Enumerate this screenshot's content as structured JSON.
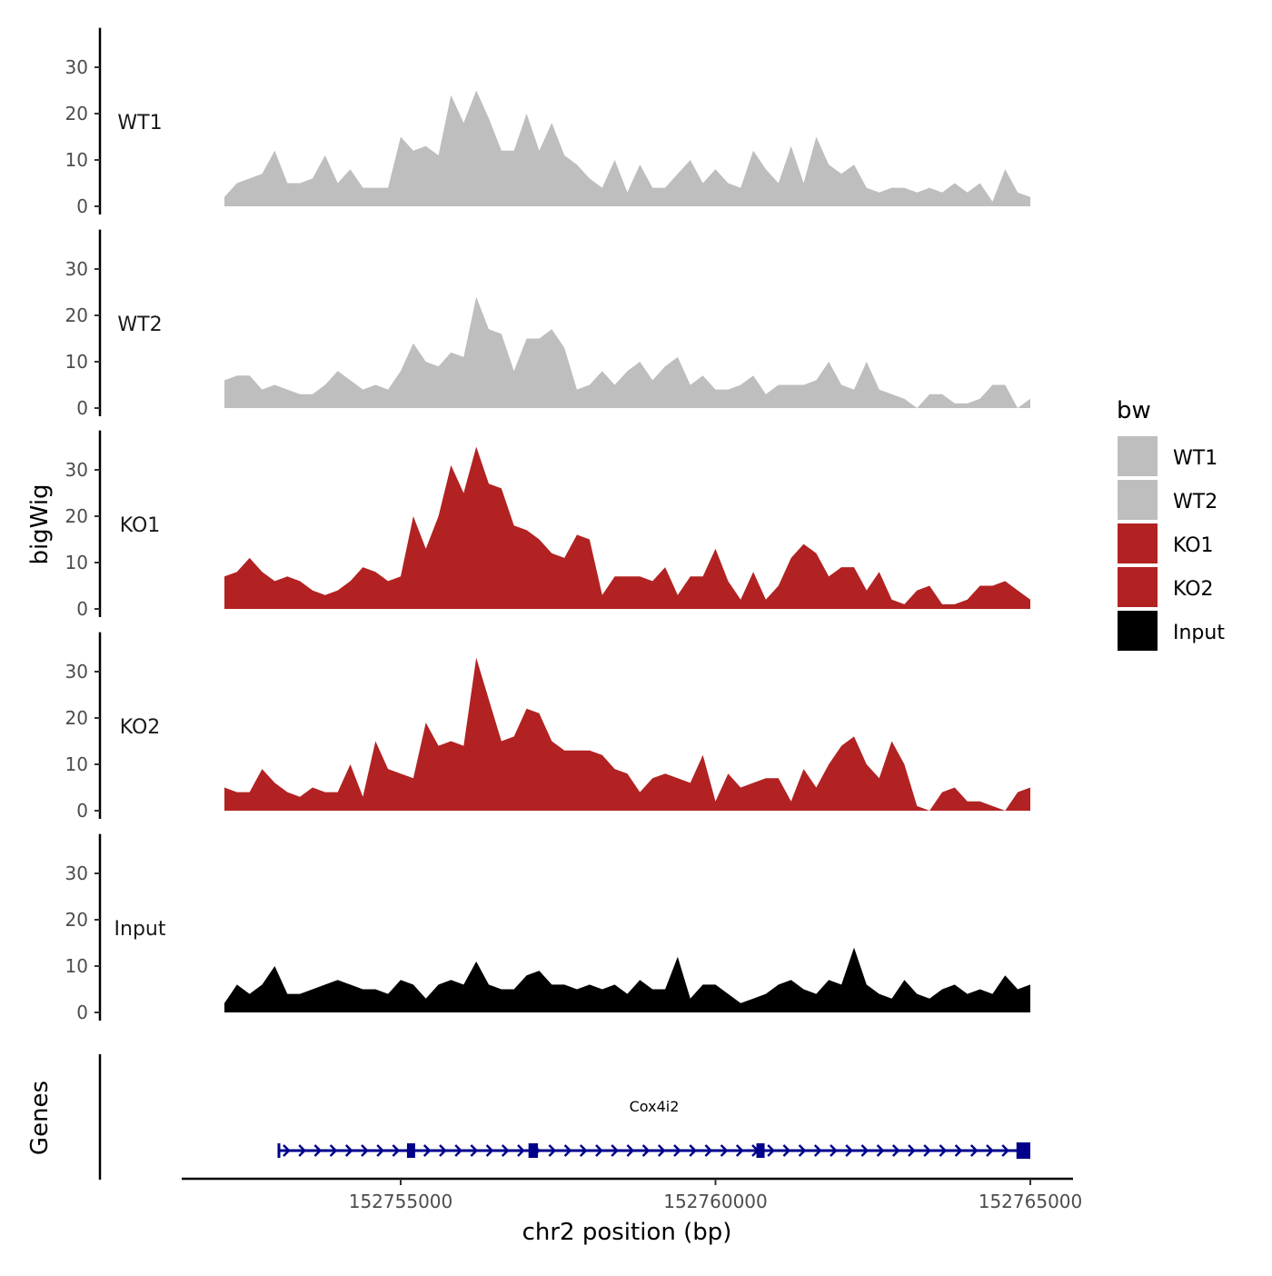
{
  "chart_data": {
    "type": "area",
    "ylabel": "bigWig",
    "genes_label": "Genes",
    "xlabel": "chr2 position (bp)",
    "xlim": [
      152752186,
      152765000
    ],
    "ylim": [
      0,
      38.5
    ],
    "yticks": [
      "0",
      "10",
      "20",
      "30"
    ],
    "ytick_values": [
      0,
      10,
      20,
      30
    ],
    "xticks": [
      "152755000",
      "152760000",
      "152765000"
    ],
    "xtick_values": [
      152755000,
      152760000,
      152765000
    ],
    "x_start": 152752200,
    "x_step": 200,
    "legend": {
      "title": "bw",
      "position": "right",
      "entries": [
        {
          "label": "WT1",
          "color": "#bebebe"
        },
        {
          "label": "WT2",
          "color": "#bebebe"
        },
        {
          "label": "KO1",
          "color": "#b22222"
        },
        {
          "label": "KO2",
          "color": "#b22222"
        },
        {
          "label": "Input",
          "color": "#000000"
        }
      ]
    },
    "series": [
      {
        "name": "WT1",
        "color": "#bebebe",
        "values": [
          2,
          5,
          6,
          7,
          12,
          5,
          5,
          6,
          11,
          5,
          8,
          4,
          4,
          4,
          15,
          12,
          13,
          11,
          24,
          18,
          25,
          19,
          12,
          12,
          20,
          12,
          18,
          11,
          9,
          6,
          4,
          10,
          3,
          9,
          4,
          4,
          7,
          10,
          5,
          8,
          5,
          4,
          12,
          8,
          5,
          13,
          5,
          15,
          9,
          7,
          9,
          4,
          3,
          4,
          4,
          3,
          4,
          3,
          5,
          3,
          5,
          1,
          8,
          3,
          2
        ]
      },
      {
        "name": "WT2",
        "color": "#bebebe",
        "values": [
          6,
          7,
          7,
          4,
          5,
          4,
          3,
          3,
          5,
          8,
          6,
          4,
          5,
          4,
          8,
          14,
          10,
          9,
          12,
          11,
          24,
          17,
          16,
          8,
          15,
          15,
          17,
          13,
          4,
          5,
          8,
          5,
          8,
          10,
          6,
          9,
          11,
          5,
          7,
          4,
          4,
          5,
          7,
          3,
          5,
          5,
          5,
          6,
          10,
          5,
          4,
          10,
          4,
          3,
          2,
          0,
          3,
          3,
          1,
          1,
          2,
          5,
          5,
          0,
          2
        ]
      },
      {
        "name": "KO1",
        "color": "#b22222",
        "values": [
          7,
          8,
          11,
          8,
          6,
          7,
          6,
          4,
          3,
          4,
          6,
          9,
          8,
          6,
          7,
          20,
          13,
          20,
          31,
          25,
          35,
          27,
          26,
          18,
          17,
          15,
          12,
          11,
          16,
          15,
          3,
          7,
          7,
          7,
          6,
          9,
          3,
          7,
          7,
          13,
          6,
          2,
          8,
          2,
          5,
          11,
          14,
          12,
          7,
          9,
          9,
          4,
          8,
          2,
          1,
          4,
          5,
          1,
          1,
          2,
          5,
          5,
          6,
          4,
          2
        ]
      },
      {
        "name": "KO2",
        "color": "#b22222",
        "values": [
          5,
          4,
          4,
          9,
          6,
          4,
          3,
          5,
          4,
          4,
          10,
          3,
          15,
          9,
          8,
          7,
          19,
          14,
          15,
          14,
          33,
          24,
          15,
          16,
          22,
          21,
          15,
          13,
          13,
          13,
          12,
          9,
          8,
          4,
          7,
          8,
          7,
          6,
          12,
          2,
          8,
          5,
          6,
          7,
          7,
          2,
          9,
          5,
          10,
          14,
          16,
          10,
          7,
          15,
          10,
          1,
          0,
          4,
          5,
          2,
          2,
          1,
          0,
          4,
          5
        ]
      },
      {
        "name": "Input",
        "color": "#000000",
        "values": [
          2,
          6,
          4,
          6,
          10,
          4,
          4,
          5,
          6,
          7,
          6,
          5,
          5,
          4,
          7,
          6,
          3,
          6,
          7,
          6,
          11,
          6,
          5,
          5,
          8,
          9,
          6,
          6,
          5,
          6,
          5,
          6,
          4,
          7,
          5,
          5,
          12,
          3,
          6,
          6,
          4,
          2,
          3,
          4,
          6,
          7,
          5,
          4,
          7,
          6,
          14,
          6,
          4,
          3,
          7,
          4,
          3,
          5,
          6,
          4,
          5,
          4,
          8,
          5,
          6
        ]
      }
    ],
    "gene": {
      "name": "Cox4i2",
      "color": "#00008b",
      "strand": "+",
      "start": 152753052,
      "end": 152765000,
      "exons": [
        [
          152755100,
          152755230
        ],
        [
          152757030,
          152757180
        ],
        [
          152760650,
          152760780
        ],
        [
          152764780,
          152765000
        ]
      ]
    }
  }
}
